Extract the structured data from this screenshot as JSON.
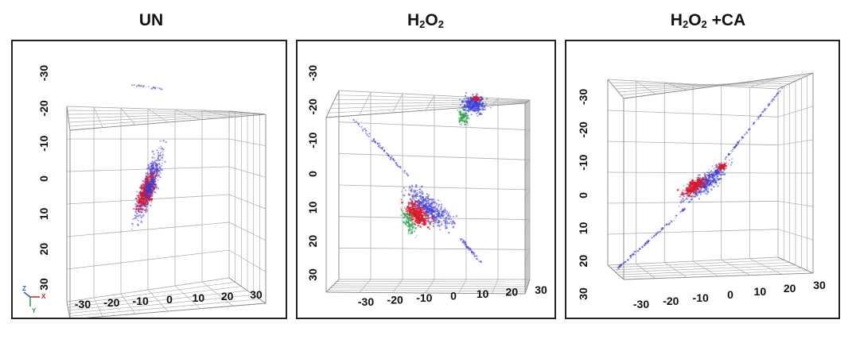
{
  "panels": [
    {
      "title_main": "UN",
      "title_sub1": "",
      "title_mid": "",
      "title_sub2": "",
      "title_suffix": ""
    },
    {
      "title_main": "H",
      "title_sub1": "2",
      "title_mid": "O",
      "title_sub2": "2",
      "title_suffix": ""
    },
    {
      "title_main": "H",
      "title_sub1": "2",
      "title_mid": "O",
      "title_sub2": "2",
      "title_suffix": " +CA"
    }
  ],
  "tick_labels": [
    "-30",
    "-20",
    "-10",
    "0",
    "10",
    "20",
    "30"
  ],
  "orientation_axes": {
    "x": "X",
    "y": "Y",
    "z": "Z"
  },
  "channel_colors": {
    "blue": "#3a3ad8",
    "red": "#d8182a",
    "green": "#2ea04a"
  },
  "gridline_color": "#b0b0b0"
}
